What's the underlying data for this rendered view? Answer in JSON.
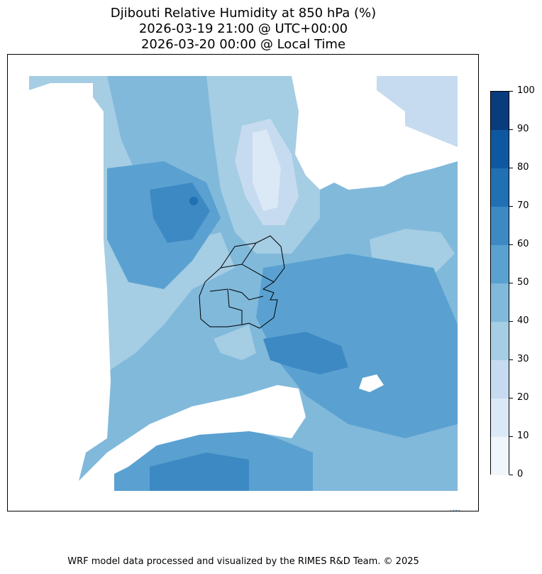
{
  "title": {
    "line1": "Djibouti Relative Humidity at 850 hPa (%)",
    "line2": "2026-03-19 21:00 @ UTC+00:00",
    "line3": "2026-03-20 00:00 @ Local Time"
  },
  "colorbar": {
    "ticks": [
      "0",
      "10",
      "20",
      "30",
      "40",
      "50",
      "60",
      "70",
      "80",
      "90",
      "100"
    ],
    "colors": [
      "#f0f6fc",
      "#dbe9f6",
      "#c6dbef",
      "#a5cde3",
      "#81b9db",
      "#5aa1d1",
      "#3d89c3",
      "#2170b4",
      "#0e58a2",
      "#083c7d"
    ]
  },
  "map": {
    "colors": {
      "no_data": "#ffffff",
      "light": "#c6dbef",
      "mid_light": "#a5cde3",
      "mid": "#81b9db",
      "mid_dark": "#5aa1d1",
      "dark": "#3d89c3",
      "darker": "#2170b4",
      "border": "#000000"
    }
  },
  "logo": {
    "text": "RIMES"
  },
  "footer": "WRF model data processed and visualized by the RIMES R&D Team. © 2025"
}
